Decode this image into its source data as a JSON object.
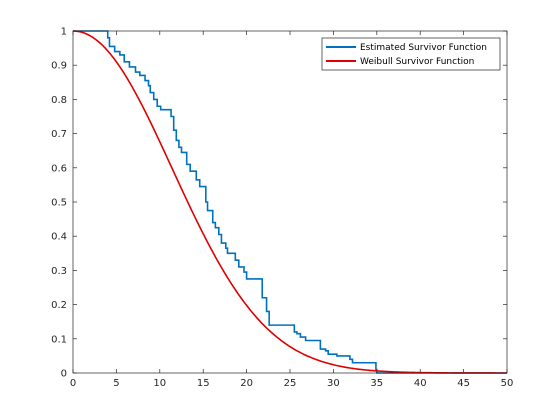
{
  "chart_data": {
    "type": "line",
    "title": "",
    "xlabel": "",
    "ylabel": "",
    "xlim": [
      0,
      50
    ],
    "ylim": [
      0,
      1
    ],
    "xticks": [
      "0",
      "5",
      "10",
      "15",
      "20",
      "25",
      "30",
      "35",
      "40",
      "45",
      "50"
    ],
    "yticks": [
      "0",
      "0.1",
      "0.2",
      "0.3",
      "0.4",
      "0.5",
      "0.6",
      "0.7",
      "0.8",
      "0.9",
      "1"
    ],
    "grid": false,
    "legend_position": "top-right",
    "series": [
      {
        "name": "Estimated Survivor Function",
        "color": "#0072BD",
        "style": "step",
        "x": [
          0,
          4,
          4.2,
          4.8,
          5.4,
          5.9,
          6.5,
          7.2,
          7.7,
          8.3,
          8.7,
          8.9,
          9.3,
          9.7,
          10.1,
          11.3,
          11.6,
          11.9,
          12.2,
          12.5,
          13.1,
          13.5,
          14.2,
          14.6,
          15.3,
          15.5,
          16.1,
          16.4,
          16.8,
          17.1,
          17.6,
          17.8,
          18.7,
          19.1,
          19.7,
          20,
          21.8,
          22.3,
          22.6,
          25.5,
          25.8,
          26.2,
          26.8,
          28.5,
          29.1,
          29.4,
          30.4,
          31.9,
          32.2,
          34.9,
          35,
          50
        ],
        "y": [
          1,
          0.98,
          0.955,
          0.94,
          0.93,
          0.91,
          0.895,
          0.88,
          0.87,
          0.855,
          0.84,
          0.82,
          0.8,
          0.78,
          0.77,
          0.75,
          0.71,
          0.68,
          0.66,
          0.645,
          0.61,
          0.59,
          0.565,
          0.545,
          0.5,
          0.475,
          0.44,
          0.425,
          0.405,
          0.38,
          0.365,
          0.35,
          0.33,
          0.31,
          0.295,
          0.275,
          0.22,
          0.18,
          0.14,
          0.12,
          0.115,
          0.105,
          0.095,
          0.07,
          0.065,
          0.055,
          0.05,
          0.04,
          0.03,
          0.01,
          0.0,
          0.0
        ]
      },
      {
        "name": "Weibull Survivor Function",
        "color": "#E00000",
        "style": "smooth",
        "function": "weibull_survivor",
        "scale": 15.8,
        "shape": 2.05
      }
    ]
  }
}
